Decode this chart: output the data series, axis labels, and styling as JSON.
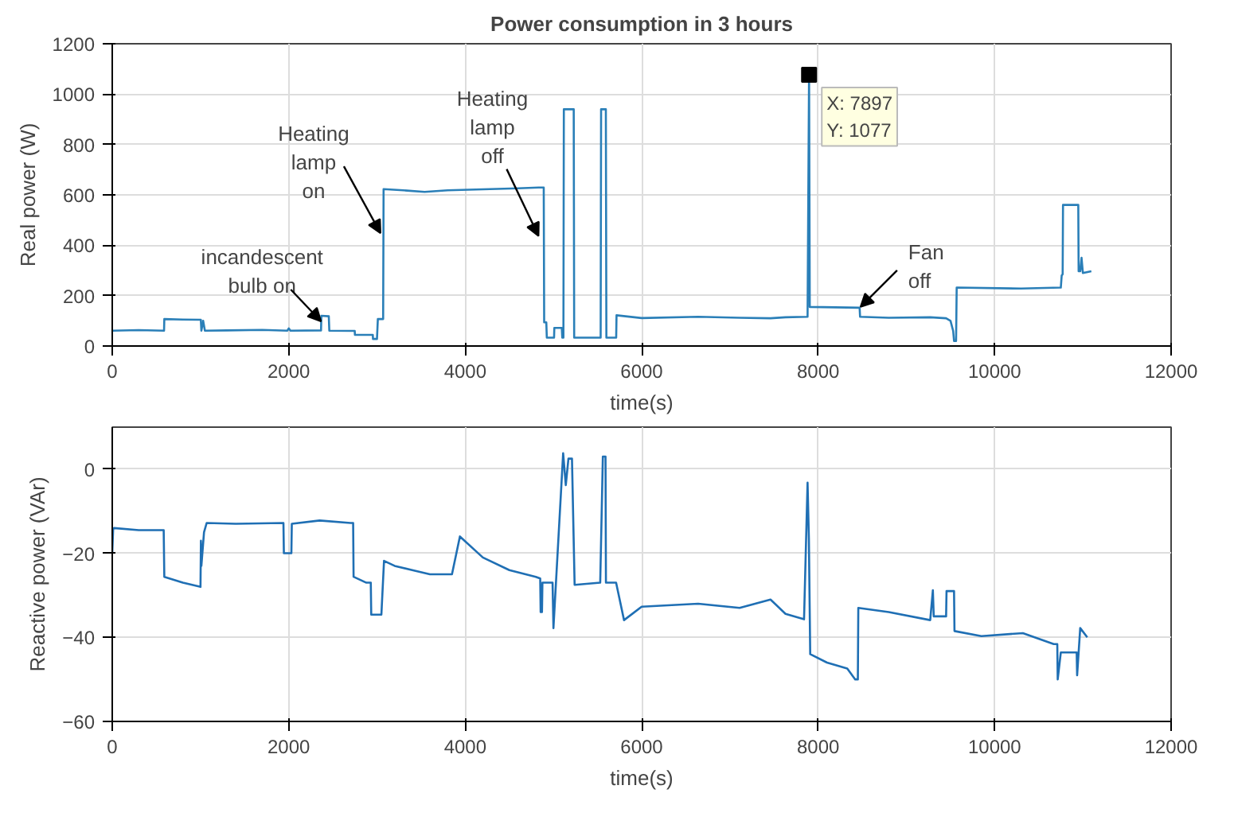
{
  "chart_data": [
    {
      "type": "line",
      "title": "Power consumption in 3 hours",
      "xlabel": "time(s)",
      "ylabel": "Real power (W)",
      "xlim": [
        0,
        12000
      ],
      "xticks": [
        0,
        2000,
        4000,
        6000,
        8000,
        10000,
        12000
      ],
      "ylim": [
        0,
        1200
      ],
      "yticks": [
        0,
        200,
        400,
        600,
        800,
        1000,
        1200
      ],
      "grid": true,
      "marker": "none",
      "line_style": "solid",
      "series": [
        {
          "color": "#2a7fb8",
          "x": [
            0,
            300,
            587,
            590,
            800,
            1004,
            1010,
            1030,
            1050,
            1300,
            1700,
            1985,
            2000,
            2020,
            2366,
            2370,
            2454,
            2460,
            2748,
            2750,
            2953,
            2955,
            3000,
            3010,
            3070,
            3075,
            3300,
            3540,
            3800,
            4200,
            4600,
            4831,
            4890,
            4895,
            4919,
            4925,
            5007,
            5010,
            5095,
            5100,
            5113,
            5118,
            5230,
            5235,
            5535,
            5540,
            5594,
            5600,
            5711,
            5715,
            6000,
            6640,
            7110,
            7460,
            7630,
            7880,
            7897,
            7905,
            7910,
            8470,
            8475,
            8800,
            9270,
            9450,
            9500,
            9530,
            9540,
            9563,
            9570,
            10300,
            10750,
            10760,
            10771,
            10775,
            10948,
            10952,
            10970,
            10985,
            11000,
            11096
          ],
          "values": [
            61,
            63,
            61,
            107,
            105,
            104,
            61,
            100,
            61,
            62,
            64,
            61,
            70,
            61,
            62,
            120,
            118,
            61,
            60,
            44,
            44,
            28,
            28,
            107,
            107,
            623,
            618,
            612,
            618,
            622,
            626,
            629,
            629,
            94,
            94,
            33,
            33,
            72,
            72,
            33,
            33,
            940,
            940,
            33,
            33,
            940,
            940,
            33,
            33,
            122,
            111,
            116,
            112,
            110,
            114,
            116,
            1077,
            155,
            155,
            152,
            116,
            112,
            114,
            110,
            100,
            60,
            20,
            20,
            232,
            228,
            232,
            280,
            285,
            560,
            560,
            297,
            297,
            350,
            290,
            297
          ]
        }
      ],
      "annotations": [
        {
          "text": "Heating\nlamp\non",
          "x": 3040,
          "y": 448
        },
        {
          "text": "incandescent\nbulb on",
          "x": 2366,
          "y": 98
        },
        {
          "text": "Heating\nlamp\noff",
          "x": 4831,
          "y": 437
        },
        {
          "text": "Fan\noff",
          "x": 8480,
          "y": 155
        },
        {
          "text": "X: 7897\nY: 1077",
          "x": 7897,
          "y": 1077
        }
      ]
    },
    {
      "type": "line",
      "xlabel": "time(s)",
      "ylabel": "Reactive power (VAr)",
      "xlim": [
        0,
        12000
      ],
      "xticks": [
        0,
        2000,
        4000,
        6000,
        8000,
        10000,
        12000
      ],
      "ylim": [
        -60,
        10
      ],
      "yticks": [
        -60,
        -40,
        -20,
        0
      ],
      "grid": true,
      "marker": "none",
      "line_style": "solid",
      "series": [
        {
          "color": "#1f6fb4",
          "x": [
            0,
            10,
            20,
            300,
            583,
            590,
            800,
            1000,
            1005,
            1010,
            1040,
            1070,
            1400,
            1940,
            1945,
            2030,
            2035,
            2350,
            2700,
            2730,
            2735,
            2880,
            2930,
            2935,
            3050,
            3080,
            3200,
            3400,
            3600,
            3850,
            3940,
            4200,
            4500,
            4800,
            4850,
            4855,
            4870,
            4875,
            4990,
            5000,
            5110,
            5140,
            5170,
            5210,
            5240,
            5245,
            5530,
            5560,
            5590,
            5595,
            5710,
            5800,
            6000,
            6640,
            7110,
            7460,
            7630,
            7840,
            7880,
            7895,
            7910,
            8100,
            8330,
            8420,
            8450,
            8455,
            8800,
            9270,
            9300,
            9310,
            9450,
            9455,
            9540,
            9545,
            9850,
            10320,
            10670,
            10710,
            10715,
            10750,
            10900,
            10930,
            10935,
            10970,
            11050
          ],
          "values": [
            -20,
            -14.3,
            -14,
            -14.5,
            -14.5,
            -25.6,
            -27,
            -28,
            -17,
            -23,
            -15,
            -12.8,
            -13,
            -12.8,
            -20,
            -20,
            -13,
            -12.2,
            -12.8,
            -12.8,
            -25.6,
            -27,
            -27,
            -34.6,
            -34.6,
            -21.8,
            -23,
            -24,
            -25,
            -25,
            -16,
            -21,
            -24,
            -25.6,
            -26,
            -34,
            -34,
            -27,
            -27,
            -37.8,
            3.8,
            -3.8,
            2.5,
            2.5,
            -27.5,
            -27.5,
            -27,
            3,
            3,
            -27,
            -27,
            -35.9,
            -32.7,
            -32,
            -33,
            -31,
            -34.4,
            -35.7,
            -3.2,
            -16.6,
            -44,
            -46,
            -47.4,
            -50,
            -50,
            -33,
            -34,
            -35.9,
            -28.8,
            -35,
            -35,
            -29,
            -29,
            -38.5,
            -39.7,
            -39,
            -41.6,
            -41.6,
            -50,
            -43.6,
            -43.6,
            -43.6,
            -49,
            -37.8,
            -40
          ]
        }
      ]
    }
  ]
}
